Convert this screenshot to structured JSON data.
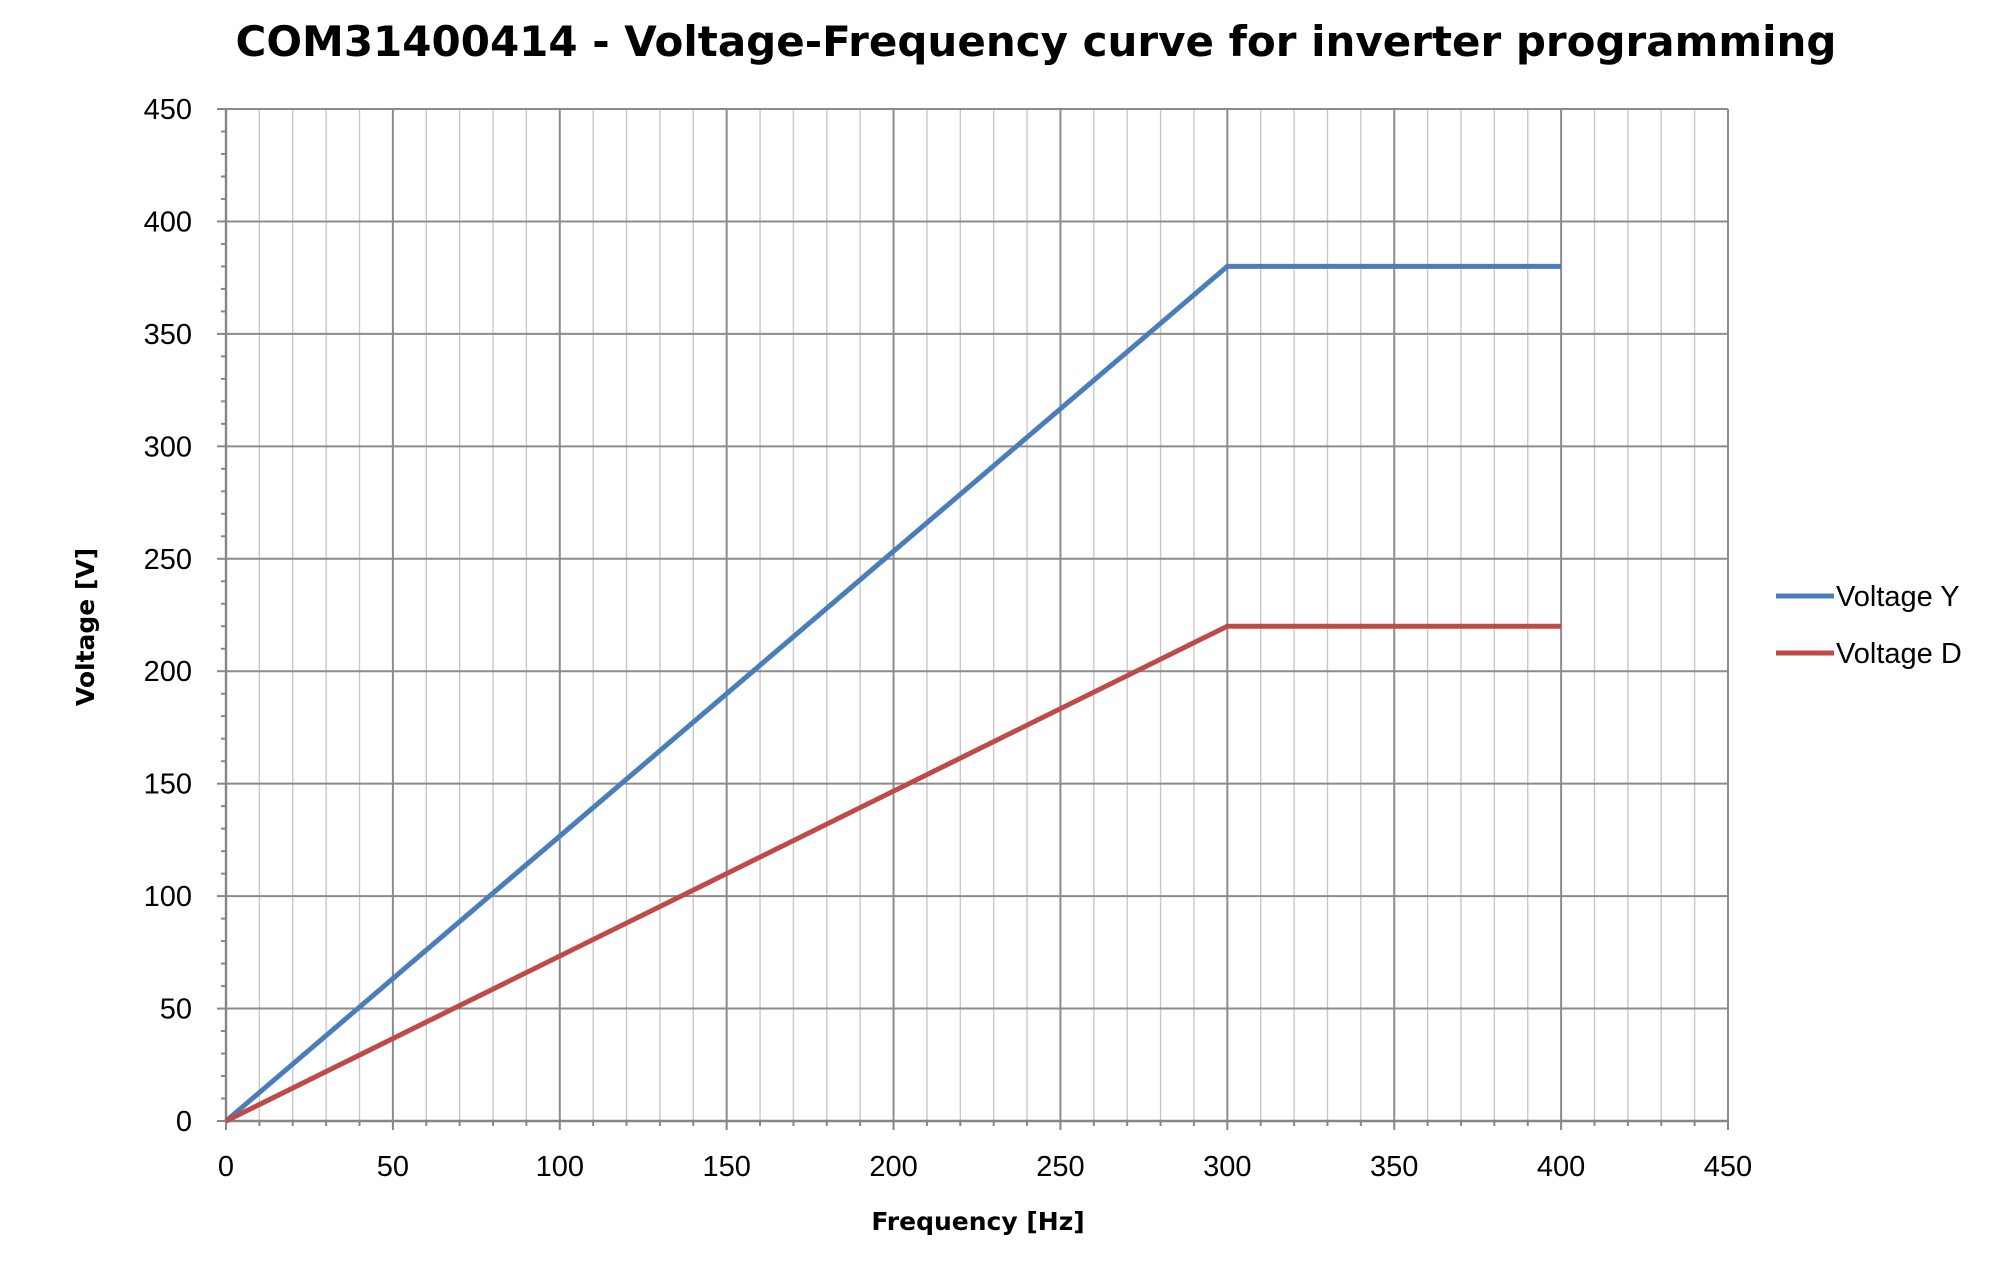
{
  "chart_data": {
    "type": "line",
    "title": "COM31400414 - Voltage-Frequency curve for inverter programming",
    "xlabel": "Frequency [Hz]",
    "ylabel": "Voltage [V]",
    "xlim": [
      0,
      450
    ],
    "ylim": [
      0,
      450
    ],
    "x_major_step": 50,
    "x_minor_step": 10,
    "y_major_step": 50,
    "y_minor_step": 10,
    "x_ticks": [
      "0",
      "50",
      "100",
      "150",
      "200",
      "250",
      "300",
      "350",
      "400",
      "450"
    ],
    "y_ticks": [
      "0",
      "50",
      "100",
      "150",
      "200",
      "250",
      "300",
      "350",
      "400",
      "450"
    ],
    "grid": true,
    "legend_position": "right",
    "series": [
      {
        "name": "Voltage Y",
        "color": "#4a7ebb",
        "points": [
          [
            0,
            0
          ],
          [
            300,
            380
          ],
          [
            400,
            380
          ]
        ]
      },
      {
        "name": "Voltage D",
        "color": "#be4b48",
        "points": [
          [
            0,
            0
          ],
          [
            300,
            220
          ],
          [
            400,
            220
          ]
        ]
      }
    ]
  }
}
